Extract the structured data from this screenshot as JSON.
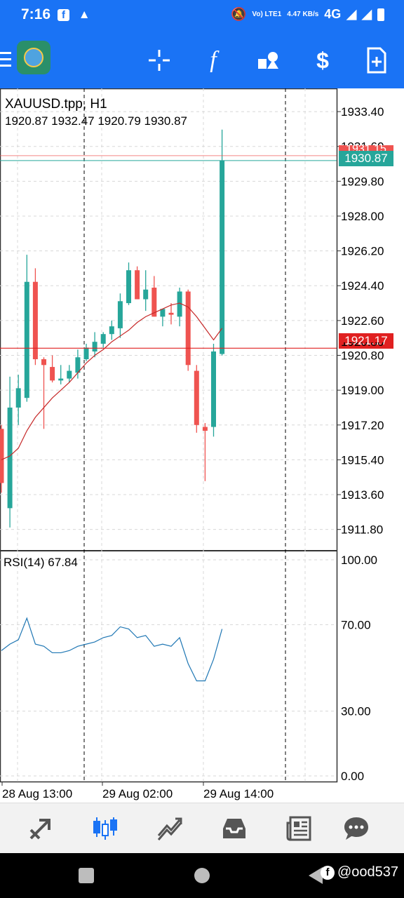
{
  "status_bar": {
    "time": "7:16",
    "network_volte": "Vo) LTE1",
    "network_speed": "4.47 KB/s",
    "network_type": "4G",
    "icons": [
      "facebook-icon",
      "warning-icon",
      "mute-icon",
      "signal-icon",
      "battery-icon"
    ]
  },
  "toolbar": {
    "icons": [
      "app-logo-icon",
      "crosshair-icon",
      "function-icon",
      "objects-icon",
      "trade-icon",
      "new-order-icon"
    ]
  },
  "chart": {
    "symbol": "XAUUSD.tpp, H1",
    "ohlc": "1920.87 1932.47 1920.79 1930.87",
    "rsi_label": "RSI(14) 67.84",
    "bid_label": "1930.87",
    "line_label": "1921.17",
    "partial_label": "1931.15",
    "hidden_label": "1920.80"
  },
  "chart_data": {
    "type": "candlestick",
    "price_axis": {
      "ticks": [
        "1933.40",
        "1931.60",
        "1929.80",
        "1928.00",
        "1926.20",
        "1924.40",
        "1922.60",
        "1920.80",
        "1919.00",
        "1917.20",
        "1915.40",
        "1913.60",
        "1911.80"
      ],
      "ylim": [
        1910.7,
        1934.6
      ]
    },
    "rsi_axis": {
      "ticks": [
        "100.00",
        "70.00",
        "30.00",
        "0.00"
      ],
      "ylim": [
        0,
        100
      ]
    },
    "time_labels": [
      "28 Aug 13:00",
      "29 Aug 02:00",
      "29 Aug 14:00"
    ],
    "candles": [
      {
        "o": 1917.0,
        "h": 1917.2,
        "l": 1913.7,
        "c": 1914.2
      },
      {
        "o": 1912.9,
        "h": 1919.7,
        "l": 1911.9,
        "c": 1918.1
      },
      {
        "o": 1918.1,
        "h": 1919.8,
        "l": 1917.2,
        "c": 1919.1
      },
      {
        "o": 1918.6,
        "h": 1926.0,
        "l": 1918.4,
        "c": 1924.6
      },
      {
        "o": 1924.6,
        "h": 1925.3,
        "l": 1920.3,
        "c": 1920.6
      },
      {
        "o": 1920.6,
        "h": 1920.7,
        "l": 1917.0,
        "c": 1920.3
      },
      {
        "o": 1920.2,
        "h": 1920.8,
        "l": 1919.4,
        "c": 1919.5
      },
      {
        "o": 1919.5,
        "h": 1920.3,
        "l": 1919.3,
        "c": 1919.6
      },
      {
        "o": 1919.6,
        "h": 1920.3,
        "l": 1919.4,
        "c": 1920.0
      },
      {
        "o": 1919.9,
        "h": 1921.1,
        "l": 1919.6,
        "c": 1920.7
      },
      {
        "o": 1920.6,
        "h": 1921.4,
        "l": 1920.5,
        "c": 1921.2
      },
      {
        "o": 1921.0,
        "h": 1922.0,
        "l": 1920.7,
        "c": 1921.5
      },
      {
        "o": 1921.4,
        "h": 1922.0,
        "l": 1921.2,
        "c": 1921.9
      },
      {
        "o": 1921.9,
        "h": 1922.6,
        "l": 1921.6,
        "c": 1922.3
      },
      {
        "o": 1922.2,
        "h": 1924.0,
        "l": 1921.7,
        "c": 1923.6
      },
      {
        "o": 1923.5,
        "h": 1925.6,
        "l": 1923.4,
        "c": 1925.2
      },
      {
        "o": 1925.2,
        "h": 1925.4,
        "l": 1923.7,
        "c": 1923.7
      },
      {
        "o": 1923.7,
        "h": 1925.2,
        "l": 1923.1,
        "c": 1924.2
      },
      {
        "o": 1924.3,
        "h": 1924.9,
        "l": 1922.8,
        "c": 1922.8
      },
      {
        "o": 1922.8,
        "h": 1923.0,
        "l": 1922.3,
        "c": 1923.2
      },
      {
        "o": 1923.0,
        "h": 1923.5,
        "l": 1922.4,
        "c": 1922.9
      },
      {
        "o": 1922.8,
        "h": 1924.3,
        "l": 1922.3,
        "c": 1924.1
      },
      {
        "o": 1924.1,
        "h": 1924.2,
        "l": 1920.0,
        "c": 1920.3
      },
      {
        "o": 1920.0,
        "h": 1920.3,
        "l": 1916.8,
        "c": 1917.2
      },
      {
        "o": 1917.1,
        "h": 1917.3,
        "l": 1914.3,
        "c": 1916.9
      },
      {
        "o": 1917.1,
        "h": 1921.4,
        "l": 1916.6,
        "c": 1921.0
      },
      {
        "o": 1920.87,
        "h": 1932.47,
        "l": 1920.79,
        "c": 1930.87
      }
    ],
    "ma": [
      1915.4,
      1915.6,
      1916.0,
      1916.9,
      1917.6,
      1918.1,
      1918.6,
      1919.0,
      1919.4,
      1919.9,
      1920.4,
      1920.8,
      1921.1,
      1921.5,
      1921.8,
      1922.1,
      1922.5,
      1922.8,
      1923.0,
      1923.2,
      1923.4,
      1923.5,
      1923.3,
      1922.8,
      1922.2,
      1921.6,
      1922.2
    ],
    "rsi": [
      58,
      61,
      63,
      73,
      61,
      60,
      57,
      57,
      58,
      60,
      61,
      62,
      64,
      65,
      69,
      68,
      64,
      65,
      60,
      61,
      60,
      64,
      52,
      44,
      44,
      54,
      68
    ],
    "current_price": 1930.87,
    "price_line": 1921.17
  },
  "bottom_nav": {
    "items": [
      "quotes-icon",
      "chart-icon",
      "trade-icon",
      "history-icon",
      "news-icon",
      "chat-icon"
    ],
    "active": 1
  },
  "watermark": {
    "fb": "f",
    "handle": "@ood537"
  },
  "colors": {
    "accent_blue": "#1a73f5",
    "bull": "#26a69a",
    "bear": "#ef5350",
    "price_line": "#e02020",
    "ma_line": "#c62828",
    "rsi_line": "#1f77b4"
  }
}
